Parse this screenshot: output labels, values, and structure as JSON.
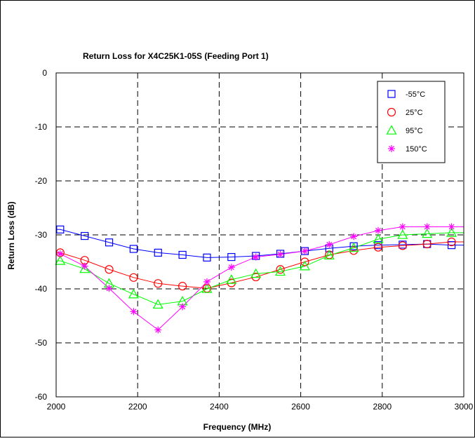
{
  "chart_data": {
    "type": "line",
    "title": "Return Loss for X4C25K1-05S (Feeding Port 1)",
    "xlabel": "Frequency (MHz)",
    "ylabel": "Return Loss (dB)",
    "xlim": [
      2000,
      3000
    ],
    "ylim": [
      -60,
      0
    ],
    "xticks": [
      2000,
      2200,
      2400,
      2600,
      2800,
      3000
    ],
    "yticks": [
      0,
      -10,
      -20,
      -30,
      -40,
      -50,
      -60
    ],
    "grid": true,
    "grid_style": "dashed",
    "legend_position": "top-right",
    "series": [
      {
        "name": "-55°C",
        "color": "#0000ff",
        "marker": "square",
        "x": [
          2010,
          2070,
          2130,
          2190,
          2250,
          2310,
          2370,
          2430,
          2490,
          2550,
          2610,
          2670,
          2730,
          2790,
          2850,
          2910,
          2970
        ],
        "y": [
          -29.0,
          -30.2,
          -31.4,
          -32.6,
          -33.3,
          -33.7,
          -34.2,
          -34.1,
          -33.9,
          -33.5,
          -33.0,
          -32.5,
          -32.1,
          -31.9,
          -31.8,
          -31.7,
          -31.9
        ]
      },
      {
        "name": "25°C",
        "color": "#ff0000",
        "marker": "circle",
        "x": [
          2010,
          2070,
          2130,
          2190,
          2250,
          2310,
          2370,
          2430,
          2490,
          2550,
          2610,
          2670,
          2730,
          2790,
          2850,
          2910,
          2970
        ],
        "y": [
          -33.3,
          -34.7,
          -36.4,
          -37.9,
          -39.0,
          -39.5,
          -39.9,
          -38.9,
          -37.8,
          -36.4,
          -35.0,
          -33.7,
          -32.9,
          -32.3,
          -32.0,
          -31.7,
          -31.3
        ]
      },
      {
        "name": "95°C",
        "color": "#00ff00",
        "marker": "triangle",
        "x": [
          2010,
          2070,
          2130,
          2190,
          2250,
          2310,
          2370,
          2430,
          2490,
          2550,
          2610,
          2670,
          2730,
          2790,
          2850,
          2910,
          2970
        ],
        "y": [
          -34.8,
          -36.3,
          -39.0,
          -41.0,
          -42.9,
          -42.3,
          -40.0,
          -38.3,
          -37.2,
          -36.8,
          -35.8,
          -33.8,
          -32.4,
          -30.8,
          -30.0,
          -29.8,
          -29.6
        ]
      },
      {
        "name": "150°C",
        "color": "#ff00ff",
        "marker": "asterisk",
        "x": [
          2010,
          2070,
          2130,
          2190,
          2250,
          2310,
          2370,
          2430,
          2490,
          2550,
          2610,
          2670,
          2730,
          2790,
          2850,
          2910,
          2970
        ],
        "y": [
          -33.5,
          -35.8,
          -39.9,
          -44.2,
          -47.6,
          -43.3,
          -38.7,
          -36.0,
          -34.1,
          -33.6,
          -33.0,
          -31.8,
          -30.3,
          -29.2,
          -28.5,
          -28.5,
          -28.5
        ]
      }
    ]
  }
}
